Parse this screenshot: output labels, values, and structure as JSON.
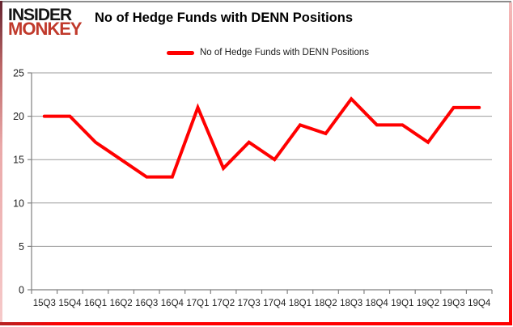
{
  "logo": {
    "line1": "INSIDER",
    "line2": "MONKEY"
  },
  "header": {
    "title": "No of Hedge Funds with DENN Positions"
  },
  "legend": {
    "label": "No of Hedge Funds with DENN Positions",
    "color": "#ff0000"
  },
  "chart_data": {
    "type": "line",
    "title": "No of Hedge Funds with DENN Positions",
    "series_name": "No of Hedge Funds with DENN Positions",
    "categories": [
      "15Q3",
      "15Q4",
      "16Q1",
      "16Q2",
      "16Q3",
      "16Q4",
      "17Q1",
      "17Q2",
      "17Q3",
      "17Q4",
      "18Q1",
      "18Q2",
      "18Q3",
      "18Q4",
      "19Q1",
      "19Q2",
      "19Q3",
      "19Q4"
    ],
    "values": [
      20,
      20,
      17,
      15,
      13,
      13,
      21,
      14,
      17,
      15,
      19,
      18,
      22,
      19,
      19,
      17,
      21,
      21
    ],
    "xlabel": "",
    "ylabel": "",
    "ylim": [
      0,
      25
    ],
    "yticks": [
      0,
      5,
      10,
      15,
      20,
      25
    ],
    "grid": true,
    "legend_position": "top",
    "line_color": "#ff0000",
    "grid_color": "#9b9b9b",
    "axis_color": "#808080"
  }
}
